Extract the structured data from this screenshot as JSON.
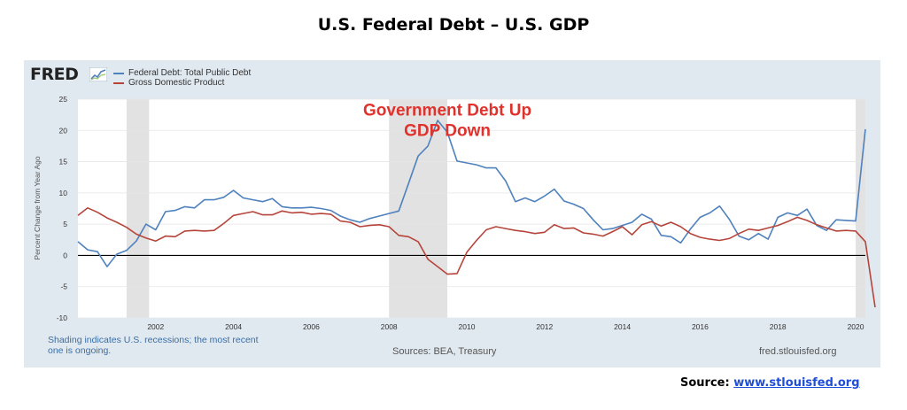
{
  "page": {
    "title": "U.S. Federal Debt – U.S. GDP",
    "source_label": "Source:",
    "source_link": "www.stlouisfed.org",
    "colors": {
      "panel": "#e1e9f0",
      "plot": "#ffffff",
      "recession": "#e2e2e2",
      "annotation": "#e0322c"
    }
  },
  "fred": {
    "logo_text": "FRED",
    "logo_icon": "fred-chart-icon",
    "footer_note": "Shading indicates U.S. recessions; the most recent one is ongoing.",
    "sources": "Sources: BEA, Treasury",
    "url": "fred.stlouisfed.org"
  },
  "chart_data": {
    "type": "line",
    "title": "",
    "ylabel": "Percent Change from Year Ago",
    "xlabel": "",
    "xlim": [
      2000.0,
      2020.25
    ],
    "ylim": [
      -10,
      25
    ],
    "y_ticks": [
      25,
      20,
      15,
      10,
      5,
      0,
      -5,
      -10
    ],
    "y_tick_labels": [
      "25",
      "20",
      "15",
      "10",
      "5",
      "0",
      "-5",
      "-10"
    ],
    "x_ticks": [
      2002,
      2004,
      2006,
      2008,
      2010,
      2012,
      2014,
      2016,
      2018,
      2020
    ],
    "x_tick_labels": [
      "2002",
      "2004",
      "2006",
      "2008",
      "2010",
      "2012",
      "2014",
      "2016",
      "2018",
      "2020"
    ],
    "grid": "horizontal",
    "zero_line": true,
    "legend_position": "top-left",
    "recessions": [
      [
        2001.25,
        2001.83
      ],
      [
        2008.0,
        2009.5
      ],
      [
        2020.0,
        2020.25
      ]
    ],
    "annotation": {
      "lines": [
        "Government Debt Up",
        "GDP Down"
      ],
      "x": 2009.5,
      "y": 23.2
    },
    "series": [
      {
        "name": "Federal Debt: Total Public Debt",
        "color": "#4f81bd",
        "points": [
          [
            2000.0,
            2.2
          ],
          [
            2000.25,
            0.9
          ],
          [
            2000.5,
            0.6
          ],
          [
            2000.75,
            -1.8
          ],
          [
            2001.0,
            0.2
          ],
          [
            2001.25,
            0.8
          ],
          [
            2001.5,
            2.3
          ],
          [
            2001.75,
            5.0
          ],
          [
            2002.0,
            4.1
          ],
          [
            2002.25,
            7.0
          ],
          [
            2002.5,
            7.2
          ],
          [
            2002.75,
            7.8
          ],
          [
            2003.0,
            7.6
          ],
          [
            2003.25,
            8.9
          ],
          [
            2003.5,
            8.9
          ],
          [
            2003.75,
            9.3
          ],
          [
            2004.0,
            10.4
          ],
          [
            2004.25,
            9.2
          ],
          [
            2004.5,
            8.9
          ],
          [
            2004.75,
            8.6
          ],
          [
            2005.0,
            9.1
          ],
          [
            2005.25,
            7.8
          ],
          [
            2005.5,
            7.6
          ],
          [
            2005.75,
            7.6
          ],
          [
            2006.0,
            7.7
          ],
          [
            2006.25,
            7.5
          ],
          [
            2006.5,
            7.2
          ],
          [
            2006.75,
            6.3
          ],
          [
            2007.0,
            5.7
          ],
          [
            2007.25,
            5.3
          ],
          [
            2007.5,
            5.9
          ],
          [
            2007.75,
            6.3
          ],
          [
            2008.0,
            6.7
          ],
          [
            2008.25,
            7.1
          ],
          [
            2008.5,
            11.5
          ],
          [
            2008.75,
            15.9
          ],
          [
            2009.0,
            17.5
          ],
          [
            2009.25,
            21.6
          ],
          [
            2009.5,
            19.7
          ],
          [
            2009.75,
            15.1
          ],
          [
            2010.0,
            14.8
          ],
          [
            2010.25,
            14.5
          ],
          [
            2010.5,
            14.0
          ],
          [
            2010.75,
            14.0
          ],
          [
            2011.0,
            11.9
          ],
          [
            2011.25,
            8.6
          ],
          [
            2011.5,
            9.2
          ],
          [
            2011.75,
            8.6
          ],
          [
            2012.0,
            9.5
          ],
          [
            2012.25,
            10.6
          ],
          [
            2012.5,
            8.7
          ],
          [
            2012.75,
            8.2
          ],
          [
            2013.0,
            7.5
          ],
          [
            2013.25,
            5.7
          ],
          [
            2013.5,
            4.1
          ],
          [
            2013.75,
            4.3
          ],
          [
            2014.0,
            4.8
          ],
          [
            2014.25,
            5.3
          ],
          [
            2014.5,
            6.6
          ],
          [
            2014.75,
            5.8
          ],
          [
            2015.0,
            3.2
          ],
          [
            2015.25,
            3.0
          ],
          [
            2015.5,
            2.0
          ],
          [
            2015.75,
            4.2
          ],
          [
            2016.0,
            6.1
          ],
          [
            2016.25,
            6.8
          ],
          [
            2016.5,
            7.9
          ],
          [
            2016.75,
            5.8
          ],
          [
            2017.0,
            3.1
          ],
          [
            2017.25,
            2.5
          ],
          [
            2017.5,
            3.5
          ],
          [
            2017.75,
            2.6
          ],
          [
            2018.0,
            6.1
          ],
          [
            2018.25,
            6.8
          ],
          [
            2018.5,
            6.4
          ],
          [
            2018.75,
            7.4
          ],
          [
            2019.0,
            4.8
          ],
          [
            2019.25,
            4.0
          ],
          [
            2019.5,
            5.7
          ],
          [
            2019.75,
            5.6
          ],
          [
            2020.0,
            5.5
          ],
          [
            2020.25,
            20.2
          ]
        ]
      },
      {
        "name": "Gross Domestic Product",
        "color": "#b5453b",
        "points": [
          [
            2000.0,
            6.4
          ],
          [
            2000.25,
            7.6
          ],
          [
            2000.5,
            6.9
          ],
          [
            2000.75,
            6.0
          ],
          [
            2001.0,
            5.3
          ],
          [
            2001.25,
            4.5
          ],
          [
            2001.5,
            3.4
          ],
          [
            2001.75,
            2.8
          ],
          [
            2002.0,
            2.3
          ],
          [
            2002.25,
            3.1
          ],
          [
            2002.5,
            3.0
          ],
          [
            2002.75,
            3.9
          ],
          [
            2003.0,
            4.0
          ],
          [
            2003.25,
            3.9
          ],
          [
            2003.5,
            4.0
          ],
          [
            2003.75,
            5.1
          ],
          [
            2004.0,
            6.4
          ],
          [
            2004.25,
            6.7
          ],
          [
            2004.5,
            7.0
          ],
          [
            2004.75,
            6.5
          ],
          [
            2005.0,
            6.5
          ],
          [
            2005.25,
            7.1
          ],
          [
            2005.5,
            6.8
          ],
          [
            2005.75,
            6.9
          ],
          [
            2006.0,
            6.6
          ],
          [
            2006.25,
            6.7
          ],
          [
            2006.5,
            6.6
          ],
          [
            2006.75,
            5.5
          ],
          [
            2007.0,
            5.3
          ],
          [
            2007.25,
            4.6
          ],
          [
            2007.5,
            4.8
          ],
          [
            2007.75,
            4.9
          ],
          [
            2008.0,
            4.6
          ],
          [
            2008.25,
            3.2
          ],
          [
            2008.5,
            3.0
          ],
          [
            2008.75,
            2.2
          ],
          [
            2009.0,
            -0.6
          ],
          [
            2009.25,
            -1.8
          ],
          [
            2009.5,
            -3.0
          ],
          [
            2009.75,
            -2.9
          ],
          [
            2010.0,
            0.5
          ],
          [
            2010.25,
            2.4
          ],
          [
            2010.5,
            4.1
          ],
          [
            2010.75,
            4.6
          ],
          [
            2011.0,
            4.3
          ],
          [
            2011.25,
            4.0
          ],
          [
            2011.5,
            3.8
          ],
          [
            2011.75,
            3.5
          ],
          [
            2012.0,
            3.7
          ],
          [
            2012.25,
            4.9
          ],
          [
            2012.5,
            4.3
          ],
          [
            2012.75,
            4.4
          ],
          [
            2013.0,
            3.6
          ],
          [
            2013.25,
            3.4
          ],
          [
            2013.5,
            3.1
          ],
          [
            2013.75,
            3.8
          ],
          [
            2014.0,
            4.6
          ],
          [
            2014.25,
            3.3
          ],
          [
            2014.5,
            4.9
          ],
          [
            2014.75,
            5.4
          ],
          [
            2015.0,
            4.7
          ],
          [
            2015.25,
            5.3
          ],
          [
            2015.5,
            4.6
          ],
          [
            2015.75,
            3.5
          ],
          [
            2016.0,
            2.9
          ],
          [
            2016.25,
            2.6
          ],
          [
            2016.5,
            2.4
          ],
          [
            2016.75,
            2.7
          ],
          [
            2017.0,
            3.5
          ],
          [
            2017.25,
            4.2
          ],
          [
            2017.5,
            4.0
          ],
          [
            2017.75,
            4.4
          ],
          [
            2018.0,
            4.8
          ],
          [
            2018.25,
            5.4
          ],
          [
            2018.5,
            6.1
          ],
          [
            2018.75,
            5.6
          ],
          [
            2019.0,
            4.9
          ],
          [
            2019.25,
            4.4
          ],
          [
            2019.5,
            3.9
          ],
          [
            2019.75,
            4.0
          ],
          [
            2020.0,
            3.9
          ],
          [
            2020.25,
            2.2
          ],
          [
            2020.5,
            -8.3
          ]
        ]
      }
    ]
  }
}
